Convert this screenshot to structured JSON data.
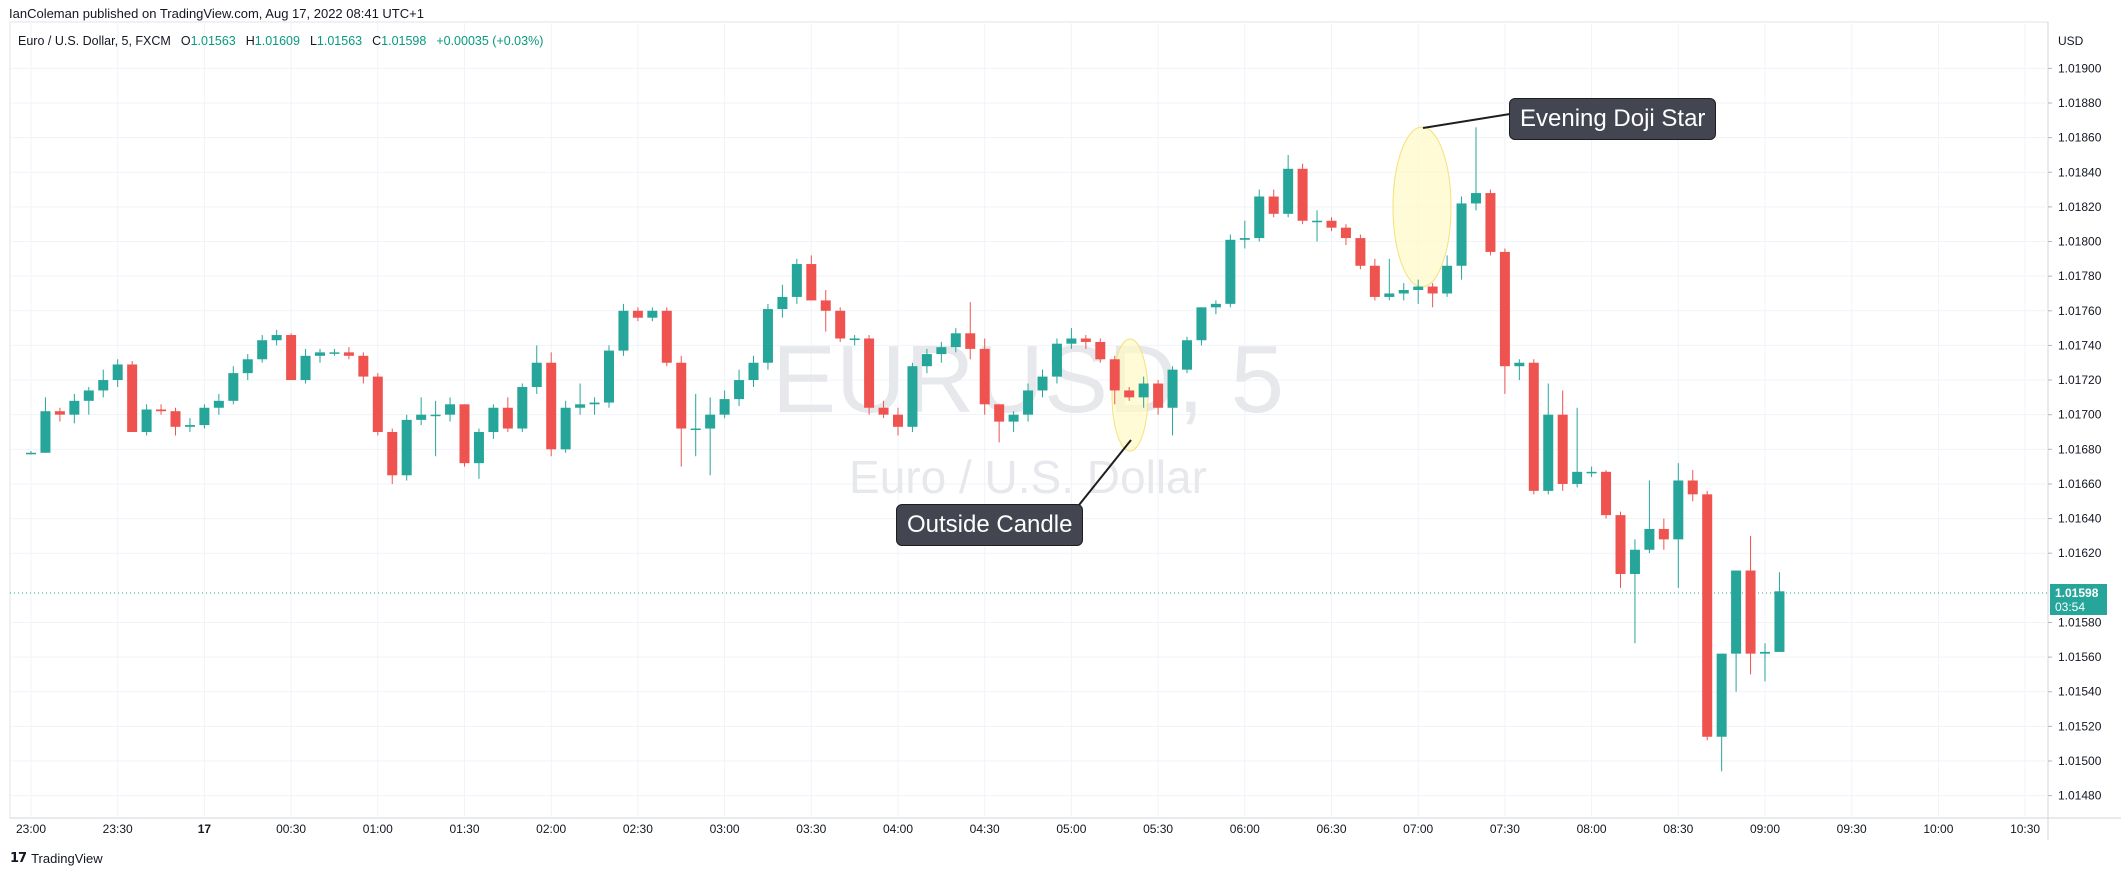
{
  "header": {
    "published": "IanColeman published on TradingView.com, Aug 17, 2022 08:41 UTC+1",
    "symbol_desc": "Euro / U.S. Dollar, 5, FXCM",
    "o_label": "O",
    "o_value": "1.01563",
    "h_label": "H",
    "h_value": "1.01609",
    "l_label": "L",
    "l_value": "1.01563",
    "c_label": "C",
    "c_value": "1.01598",
    "change": "+0.00035 (+0.03%)"
  },
  "watermark": {
    "symbol": "EURUSD, 5",
    "name": "Euro / U.S. Dollar"
  },
  "annotations": {
    "outside_candle": "Outside Candle",
    "evening_doji_star": "Evening Doji Star"
  },
  "last_price": {
    "price": "1.01598",
    "countdown": "03:54"
  },
  "logo_text": "TradingView",
  "colors": {
    "up": "#26a69a",
    "down": "#ef5350",
    "grid": "#f0f3fa",
    "highlight": "#fff9c4",
    "callout_bg": "#434651"
  },
  "chart_data": {
    "type": "candlestick",
    "currency": "USD",
    "interval_minutes": 5,
    "ylim": [
      1.0147,
      1.0192
    ],
    "y_ticks": [
      "1.01900",
      "1.01880",
      "1.01860",
      "1.01840",
      "1.01820",
      "1.01800",
      "1.01780",
      "1.01760",
      "1.01740",
      "1.01720",
      "1.01700",
      "1.01680",
      "1.01660",
      "1.01640",
      "1.01620",
      "1.01580",
      "1.01560",
      "1.01540",
      "1.01520",
      "1.01500",
      "1.01480"
    ],
    "x_ticks": [
      "23:00",
      "23:30",
      "17",
      "00:30",
      "01:00",
      "01:30",
      "02:00",
      "02:30",
      "03:00",
      "03:30",
      "04:00",
      "04:30",
      "05:00",
      "05:30",
      "06:00",
      "06:30",
      "07:00",
      "07:30",
      "08:00",
      "08:30",
      "09:00",
      "09:30",
      "10:00",
      "10:30"
    ],
    "candles": [
      {
        "o": 1.01678,
        "h": 1.01679,
        "l": 1.01677,
        "c": 1.01678
      },
      {
        "o": 1.01678,
        "h": 1.0171,
        "l": 1.01678,
        "c": 1.01702
      },
      {
        "o": 1.01702,
        "h": 1.01704,
        "l": 1.01696,
        "c": 1.017
      },
      {
        "o": 1.017,
        "h": 1.01712,
        "l": 1.01695,
        "c": 1.01708
      },
      {
        "o": 1.01708,
        "h": 1.01716,
        "l": 1.017,
        "c": 1.01714
      },
      {
        "o": 1.01714,
        "h": 1.01726,
        "l": 1.0171,
        "c": 1.0172
      },
      {
        "o": 1.0172,
        "h": 1.01732,
        "l": 1.01716,
        "c": 1.01729
      },
      {
        "o": 1.01729,
        "h": 1.01731,
        "l": 1.0169,
        "c": 1.0169
      },
      {
        "o": 1.0169,
        "h": 1.01706,
        "l": 1.01688,
        "c": 1.01703
      },
      {
        "o": 1.01703,
        "h": 1.01706,
        "l": 1.017,
        "c": 1.01702
      },
      {
        "o": 1.01702,
        "h": 1.01704,
        "l": 1.01688,
        "c": 1.01693
      },
      {
        "o": 1.01693,
        "h": 1.01698,
        "l": 1.0169,
        "c": 1.01694
      },
      {
        "o": 1.01694,
        "h": 1.01706,
        "l": 1.01692,
        "c": 1.01704
      },
      {
        "o": 1.01704,
        "h": 1.01712,
        "l": 1.017,
        "c": 1.01708
      },
      {
        "o": 1.01708,
        "h": 1.01728,
        "l": 1.01706,
        "c": 1.01724
      },
      {
        "o": 1.01724,
        "h": 1.01735,
        "l": 1.0172,
        "c": 1.01732
      },
      {
        "o": 1.01732,
        "h": 1.01746,
        "l": 1.0173,
        "c": 1.01743
      },
      {
        "o": 1.01743,
        "h": 1.01749,
        "l": 1.0174,
        "c": 1.01746
      },
      {
        "o": 1.01746,
        "h": 1.01747,
        "l": 1.0172,
        "c": 1.0172
      },
      {
        "o": 1.0172,
        "h": 1.01738,
        "l": 1.01718,
        "c": 1.01734
      },
      {
        "o": 1.01734,
        "h": 1.01738,
        "l": 1.0173,
        "c": 1.01736
      },
      {
        "o": 1.01736,
        "h": 1.01738,
        "l": 1.01734,
        "c": 1.01736
      },
      {
        "o": 1.01736,
        "h": 1.01739,
        "l": 1.01732,
        "c": 1.01734
      },
      {
        "o": 1.01734,
        "h": 1.01736,
        "l": 1.01718,
        "c": 1.01722
      },
      {
        "o": 1.01722,
        "h": 1.01724,
        "l": 1.01688,
        "c": 1.0169
      },
      {
        "o": 1.0169,
        "h": 1.01692,
        "l": 1.0166,
        "c": 1.01665
      },
      {
        "o": 1.01665,
        "h": 1.017,
        "l": 1.01662,
        "c": 1.01697
      },
      {
        "o": 1.01697,
        "h": 1.0171,
        "l": 1.01694,
        "c": 1.017
      },
      {
        "o": 1.017,
        "h": 1.01708,
        "l": 1.01676,
        "c": 1.017
      },
      {
        "o": 1.017,
        "h": 1.0171,
        "l": 1.01696,
        "c": 1.01706
      },
      {
        "o": 1.01706,
        "h": 1.01706,
        "l": 1.0167,
        "c": 1.01672
      },
      {
        "o": 1.01672,
        "h": 1.01692,
        "l": 1.01663,
        "c": 1.0169
      },
      {
        "o": 1.0169,
        "h": 1.01706,
        "l": 1.01686,
        "c": 1.01704
      },
      {
        "o": 1.01704,
        "h": 1.0171,
        "l": 1.0169,
        "c": 1.01692
      },
      {
        "o": 1.01692,
        "h": 1.01718,
        "l": 1.0169,
        "c": 1.01716
      },
      {
        "o": 1.01716,
        "h": 1.0174,
        "l": 1.01712,
        "c": 1.0173
      },
      {
        "o": 1.0173,
        "h": 1.01736,
        "l": 1.01676,
        "c": 1.0168
      },
      {
        "o": 1.0168,
        "h": 1.01708,
        "l": 1.01678,
        "c": 1.01704
      },
      {
        "o": 1.01704,
        "h": 1.01718,
        "l": 1.017,
        "c": 1.01706
      },
      {
        "o": 1.01706,
        "h": 1.0171,
        "l": 1.017,
        "c": 1.01707
      },
      {
        "o": 1.01707,
        "h": 1.0174,
        "l": 1.01704,
        "c": 1.01737
      },
      {
        "o": 1.01737,
        "h": 1.01764,
        "l": 1.01734,
        "c": 1.0176
      },
      {
        "o": 1.0176,
        "h": 1.01762,
        "l": 1.01754,
        "c": 1.01756
      },
      {
        "o": 1.01756,
        "h": 1.01762,
        "l": 1.01754,
        "c": 1.0176
      },
      {
        "o": 1.0176,
        "h": 1.01762,
        "l": 1.01728,
        "c": 1.0173
      },
      {
        "o": 1.0173,
        "h": 1.01734,
        "l": 1.0167,
        "c": 1.01692
      },
      {
        "o": 1.01692,
        "h": 1.01712,
        "l": 1.01676,
        "c": 1.01692
      },
      {
        "o": 1.01692,
        "h": 1.0171,
        "l": 1.01665,
        "c": 1.017
      },
      {
        "o": 1.017,
        "h": 1.01714,
        "l": 1.01698,
        "c": 1.01709
      },
      {
        "o": 1.01709,
        "h": 1.01726,
        "l": 1.01705,
        "c": 1.0172
      },
      {
        "o": 1.0172,
        "h": 1.01734,
        "l": 1.01716,
        "c": 1.0173
      },
      {
        "o": 1.0173,
        "h": 1.01764,
        "l": 1.01726,
        "c": 1.01761
      },
      {
        "o": 1.01761,
        "h": 1.01775,
        "l": 1.01756,
        "c": 1.01768
      },
      {
        "o": 1.01768,
        "h": 1.0179,
        "l": 1.01764,
        "c": 1.01787
      },
      {
        "o": 1.01787,
        "h": 1.01792,
        "l": 1.01766,
        "c": 1.01766
      },
      {
        "o": 1.01766,
        "h": 1.01772,
        "l": 1.01748,
        "c": 1.0176
      },
      {
        "o": 1.0176,
        "h": 1.01762,
        "l": 1.01742,
        "c": 1.01744
      },
      {
        "o": 1.01744,
        "h": 1.01746,
        "l": 1.0174,
        "c": 1.01744
      },
      {
        "o": 1.01744,
        "h": 1.01746,
        "l": 1.017,
        "c": 1.01704
      },
      {
        "o": 1.01704,
        "h": 1.01708,
        "l": 1.01698,
        "c": 1.017
      },
      {
        "o": 1.017,
        "h": 1.01704,
        "l": 1.01688,
        "c": 1.01693
      },
      {
        "o": 1.01693,
        "h": 1.0173,
        "l": 1.0169,
        "c": 1.01728
      },
      {
        "o": 1.01728,
        "h": 1.01738,
        "l": 1.01724,
        "c": 1.01735
      },
      {
        "o": 1.01735,
        "h": 1.01742,
        "l": 1.0173,
        "c": 1.01739
      },
      {
        "o": 1.01739,
        "h": 1.0175,
        "l": 1.01736,
        "c": 1.01747
      },
      {
        "o": 1.01747,
        "h": 1.01765,
        "l": 1.01732,
        "c": 1.01738
      },
      {
        "o": 1.01738,
        "h": 1.01744,
        "l": 1.017,
        "c": 1.01706
      },
      {
        "o": 1.01706,
        "h": 1.01706,
        "l": 1.01684,
        "c": 1.01696
      },
      {
        "o": 1.01696,
        "h": 1.01702,
        "l": 1.0169,
        "c": 1.017
      },
      {
        "o": 1.017,
        "h": 1.01718,
        "l": 1.01696,
        "c": 1.01714
      },
      {
        "o": 1.01714,
        "h": 1.01726,
        "l": 1.0171,
        "c": 1.01722
      },
      {
        "o": 1.01722,
        "h": 1.01744,
        "l": 1.01718,
        "c": 1.01741
      },
      {
        "o": 1.01741,
        "h": 1.0175,
        "l": 1.01738,
        "c": 1.01744
      },
      {
        "o": 1.01744,
        "h": 1.01746,
        "l": 1.01738,
        "c": 1.01742
      },
      {
        "o": 1.01742,
        "h": 1.01744,
        "l": 1.0173,
        "c": 1.01732
      },
      {
        "o": 1.01732,
        "h": 1.01734,
        "l": 1.01706,
        "c": 1.01714
      },
      {
        "o": 1.01714,
        "h": 1.01716,
        "l": 1.01708,
        "c": 1.0171
      },
      {
        "o": 1.0171,
        "h": 1.01722,
        "l": 1.01704,
        "c": 1.01718
      },
      {
        "o": 1.01718,
        "h": 1.0172,
        "l": 1.017,
        "c": 1.01704
      },
      {
        "o": 1.01704,
        "h": 1.01728,
        "l": 1.01688,
        "c": 1.01726
      },
      {
        "o": 1.01726,
        "h": 1.01745,
        "l": 1.01724,
        "c": 1.01743
      },
      {
        "o": 1.01743,
        "h": 1.01762,
        "l": 1.0174,
        "c": 1.01762
      },
      {
        "o": 1.01762,
        "h": 1.01766,
        "l": 1.01758,
        "c": 1.01764
      },
      {
        "o": 1.01764,
        "h": 1.01804,
        "l": 1.01762,
        "c": 1.01801
      },
      {
        "o": 1.01801,
        "h": 1.01812,
        "l": 1.01796,
        "c": 1.01802
      },
      {
        "o": 1.01802,
        "h": 1.0183,
        "l": 1.018,
        "c": 1.01826
      },
      {
        "o": 1.01826,
        "h": 1.0183,
        "l": 1.01814,
        "c": 1.01816
      },
      {
        "o": 1.01816,
        "h": 1.0185,
        "l": 1.01814,
        "c": 1.01842
      },
      {
        "o": 1.01842,
        "h": 1.01845,
        "l": 1.0181,
        "c": 1.01812
      },
      {
        "o": 1.01812,
        "h": 1.01818,
        "l": 1.018,
        "c": 1.01812
      },
      {
        "o": 1.01812,
        "h": 1.01814,
        "l": 1.01806,
        "c": 1.01808
      },
      {
        "o": 1.01808,
        "h": 1.0181,
        "l": 1.01798,
        "c": 1.01802
      },
      {
        "o": 1.01802,
        "h": 1.01804,
        "l": 1.01784,
        "c": 1.01786
      },
      {
        "o": 1.01786,
        "h": 1.0179,
        "l": 1.01766,
        "c": 1.01768
      },
      {
        "o": 1.01768,
        "h": 1.0179,
        "l": 1.01766,
        "c": 1.0177
      },
      {
        "o": 1.0177,
        "h": 1.01776,
        "l": 1.01766,
        "c": 1.01772
      },
      {
        "o": 1.01772,
        "h": 1.01778,
        "l": 1.01764,
        "c": 1.01774
      },
      {
        "o": 1.01774,
        "h": 1.01776,
        "l": 1.01762,
        "c": 1.0177
      },
      {
        "o": 1.0177,
        "h": 1.01792,
        "l": 1.01768,
        "c": 1.01786
      },
      {
        "o": 1.01786,
        "h": 1.01826,
        "l": 1.01778,
        "c": 1.01822
      },
      {
        "o": 1.01822,
        "h": 1.01866,
        "l": 1.01818,
        "c": 1.01828
      },
      {
        "o": 1.01828,
        "h": 1.0183,
        "l": 1.01792,
        "c": 1.01794
      },
      {
        "o": 1.01794,
        "h": 1.01796,
        "l": 1.01712,
        "c": 1.01728
      },
      {
        "o": 1.01728,
        "h": 1.01732,
        "l": 1.0172,
        "c": 1.0173
      },
      {
        "o": 1.0173,
        "h": 1.01732,
        "l": 1.01654,
        "c": 1.01656
      },
      {
        "o": 1.01656,
        "h": 1.01718,
        "l": 1.01654,
        "c": 1.017
      },
      {
        "o": 1.017,
        "h": 1.01714,
        "l": 1.01656,
        "c": 1.0166
      },
      {
        "o": 1.0166,
        "h": 1.01704,
        "l": 1.01658,
        "c": 1.01667
      },
      {
        "o": 1.01667,
        "h": 1.0167,
        "l": 1.01664,
        "c": 1.01667
      },
      {
        "o": 1.01667,
        "h": 1.01668,
        "l": 1.0164,
        "c": 1.01642
      },
      {
        "o": 1.01642,
        "h": 1.01644,
        "l": 1.016,
        "c": 1.01608
      },
      {
        "o": 1.01608,
        "h": 1.01628,
        "l": 1.01568,
        "c": 1.01622
      },
      {
        "o": 1.01622,
        "h": 1.01662,
        "l": 1.0162,
        "c": 1.01634
      },
      {
        "o": 1.01634,
        "h": 1.0164,
        "l": 1.01622,
        "c": 1.01628
      },
      {
        "o": 1.01628,
        "h": 1.01672,
        "l": 1.016,
        "c": 1.01662
      },
      {
        "o": 1.01662,
        "h": 1.01668,
        "l": 1.0165,
        "c": 1.01654
      },
      {
        "o": 1.01654,
        "h": 1.01656,
        "l": 1.01512,
        "c": 1.01514
      },
      {
        "o": 1.01514,
        "h": 1.01562,
        "l": 1.01494,
        "c": 1.01562
      },
      {
        "o": 1.01562,
        "h": 1.0161,
        "l": 1.0154,
        "c": 1.0161
      },
      {
        "o": 1.0161,
        "h": 1.0163,
        "l": 1.0155,
        "c": 1.01562
      },
      {
        "o": 1.01562,
        "h": 1.01568,
        "l": 1.01546,
        "c": 1.01563
      },
      {
        "o": 1.01563,
        "h": 1.01609,
        "l": 1.01563,
        "c": 1.01598
      }
    ]
  }
}
